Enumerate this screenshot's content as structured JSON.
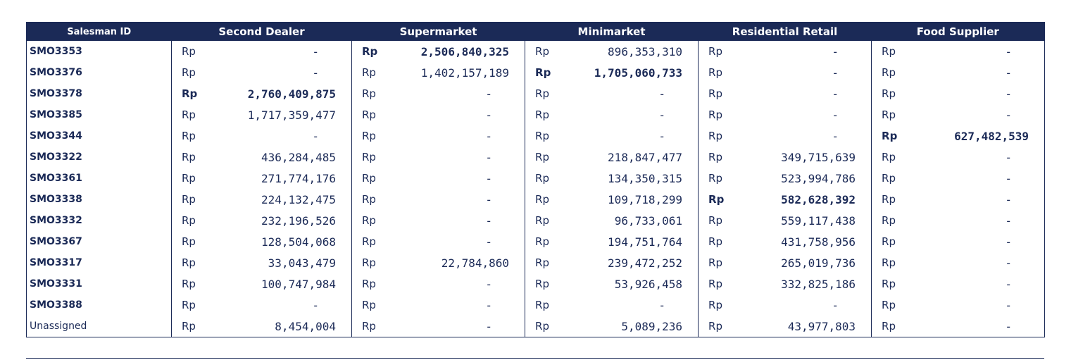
{
  "currency": "Rp",
  "headers": {
    "salesman_id": "Salesman ID",
    "channels": [
      "Second Dealer",
      "Supermarket",
      "Minimarket",
      "Residential Retail",
      "Food Supplier"
    ]
  },
  "rows": [
    {
      "id": "SMO3353",
      "id_bold": true,
      "cells": [
        {
          "v": "-",
          "b": false
        },
        {
          "v": "2,506,840,325",
          "b": true
        },
        {
          "v": "896,353,310",
          "b": false
        },
        {
          "v": "-",
          "b": false
        },
        {
          "v": "-",
          "b": false
        }
      ]
    },
    {
      "id": "SMO3376",
      "id_bold": true,
      "cells": [
        {
          "v": "-",
          "b": false
        },
        {
          "v": "1,402,157,189",
          "b": false
        },
        {
          "v": "1,705,060,733",
          "b": true
        },
        {
          "v": "-",
          "b": false
        },
        {
          "v": "-",
          "b": false
        }
      ]
    },
    {
      "id": "SMO3378",
      "id_bold": true,
      "cells": [
        {
          "v": "2,760,409,875",
          "b": true
        },
        {
          "v": "-",
          "b": false
        },
        {
          "v": "-",
          "b": false
        },
        {
          "v": "-",
          "b": false
        },
        {
          "v": "-",
          "b": false
        }
      ]
    },
    {
      "id": "SMO3385",
      "id_bold": true,
      "cells": [
        {
          "v": "1,717,359,477",
          "b": false
        },
        {
          "v": "-",
          "b": false
        },
        {
          "v": "-",
          "b": false
        },
        {
          "v": "-",
          "b": false
        },
        {
          "v": "-",
          "b": false
        }
      ]
    },
    {
      "id": "SMO3344",
      "id_bold": true,
      "cells": [
        {
          "v": "-",
          "b": false
        },
        {
          "v": "-",
          "b": false
        },
        {
          "v": "-",
          "b": false
        },
        {
          "v": "-",
          "b": false
        },
        {
          "v": "627,482,539",
          "b": true
        }
      ]
    },
    {
      "id": "SMO3322",
      "id_bold": true,
      "cells": [
        {
          "v": "436,284,485",
          "b": false
        },
        {
          "v": "-",
          "b": false
        },
        {
          "v": "218,847,477",
          "b": false
        },
        {
          "v": "349,715,639",
          "b": false
        },
        {
          "v": "-",
          "b": false
        }
      ]
    },
    {
      "id": "SMO3361",
      "id_bold": true,
      "cells": [
        {
          "v": "271,774,176",
          "b": false
        },
        {
          "v": "-",
          "b": false
        },
        {
          "v": "134,350,315",
          "b": false
        },
        {
          "v": "523,994,786",
          "b": false
        },
        {
          "v": "-",
          "b": false
        }
      ]
    },
    {
      "id": "SMO3338",
      "id_bold": true,
      "cells": [
        {
          "v": "224,132,475",
          "b": false
        },
        {
          "v": "-",
          "b": false
        },
        {
          "v": "109,718,299",
          "b": false
        },
        {
          "v": "582,628,392",
          "b": true
        },
        {
          "v": "-",
          "b": false
        }
      ]
    },
    {
      "id": "SMO3332",
      "id_bold": true,
      "cells": [
        {
          "v": "232,196,526",
          "b": false
        },
        {
          "v": "-",
          "b": false
        },
        {
          "v": "96,733,061",
          "b": false
        },
        {
          "v": "559,117,438",
          "b": false
        },
        {
          "v": "-",
          "b": false
        }
      ]
    },
    {
      "id": "SMO3367",
      "id_bold": true,
      "cells": [
        {
          "v": "128,504,068",
          "b": false
        },
        {
          "v": "-",
          "b": false
        },
        {
          "v": "194,751,764",
          "b": false
        },
        {
          "v": "431,758,956",
          "b": false
        },
        {
          "v": "-",
          "b": false
        }
      ]
    },
    {
      "id": "SMO3317",
      "id_bold": true,
      "cells": [
        {
          "v": "33,043,479",
          "b": false
        },
        {
          "v": "22,784,860",
          "b": false
        },
        {
          "v": "239,472,252",
          "b": false
        },
        {
          "v": "265,019,736",
          "b": false
        },
        {
          "v": "-",
          "b": false
        }
      ]
    },
    {
      "id": "SMO3331",
      "id_bold": true,
      "cells": [
        {
          "v": "100,747,984",
          "b": false
        },
        {
          "v": "-",
          "b": false
        },
        {
          "v": "53,926,458",
          "b": false
        },
        {
          "v": "332,825,186",
          "b": false
        },
        {
          "v": "-",
          "b": false
        }
      ]
    },
    {
      "id": "SMO3388",
      "id_bold": true,
      "cells": [
        {
          "v": "-",
          "b": false
        },
        {
          "v": "-",
          "b": false
        },
        {
          "v": "-",
          "b": false
        },
        {
          "v": "-",
          "b": false
        },
        {
          "v": "-",
          "b": false
        }
      ]
    },
    {
      "id": "Unassigned",
      "id_bold": false,
      "cells": [
        {
          "v": "8,454,004",
          "b": false
        },
        {
          "v": "-",
          "b": false
        },
        {
          "v": "5,089,236",
          "b": false
        },
        {
          "v": "43,977,803",
          "b": false
        },
        {
          "v": "-",
          "b": false
        }
      ]
    }
  ],
  "colors": {
    "header_bg": "#1b2a57",
    "header_text": "#ffffff",
    "text": "#1b2a57",
    "border": "#1b2a57"
  }
}
